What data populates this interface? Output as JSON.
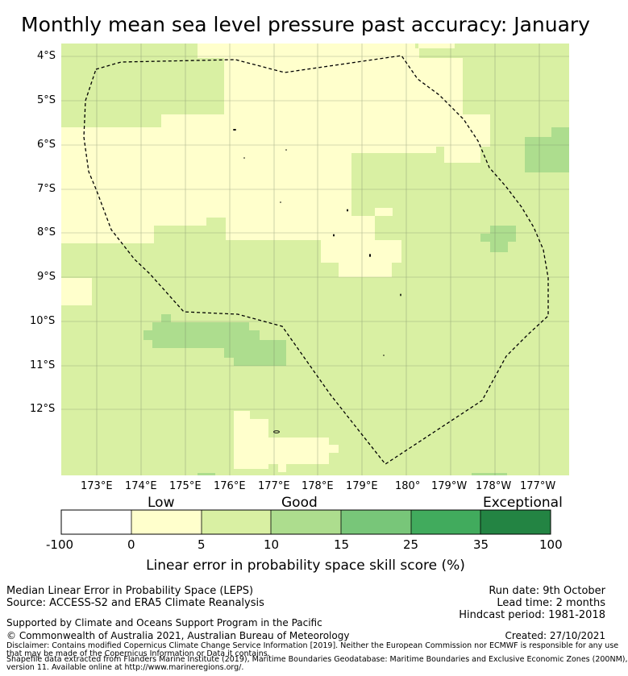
{
  "title": "Monthly mean sea level pressure past accuracy: January",
  "map": {
    "latitude_labels": [
      "4°S",
      "5°S",
      "6°S",
      "7°S",
      "8°S",
      "9°S",
      "10°S",
      "11°S",
      "12°S"
    ],
    "longitude_labels": [
      "173°E",
      "174°E",
      "175°E",
      "176°E",
      "177°E",
      "178°E",
      "179°E",
      "180°",
      "179°W",
      "178°W",
      "177°W"
    ]
  },
  "legend": {
    "categories": [
      "Low",
      "Good",
      "Exceptional"
    ],
    "ticks": [
      "-100",
      "0",
      "5",
      "10",
      "15",
      "25",
      "35",
      "100"
    ],
    "colors": [
      "#ffffff",
      "#ffffcc",
      "#d9f0a3",
      "#addd8e",
      "#78c679",
      "#41ab5d",
      "#238443"
    ],
    "label": "Linear error in probability space skill score (%)"
  },
  "info": {
    "left_line1": "Median Linear Error in Probability Space (LEPS)",
    "left_line2": "Source: ACCESS-S2 and ERA5 Climate Reanalysis",
    "run_date": "Run date: 9th October",
    "lead_time": "Lead time: 2 months",
    "hindcast": "Hindcast period: 1981-2018",
    "supported": "Supported by Climate and Oceans Support Program in the Pacific",
    "copyright": "© Commonwealth of Australia 2021, Australian Bureau of Meteorology",
    "created": "Created: 27/10/2021",
    "disclaimer1": "Disclaimer: Contains modified Copernicus Climate Change Service Information [2019]. Neither the European Commission nor ECMWF is responsible for any use",
    "disclaimer2": "that may be made of the Copernicus Information or Data it contains.",
    "shapefile1": "Shapefile data extracted from Flanders Marine Institute (2019), Maritime Boundaries Geodatabase: Maritime Boundaries and Exclusive Economic Zones (200NM),",
    "shapefile2": "version 11. Available online at http://www.marineregions.org/."
  }
}
